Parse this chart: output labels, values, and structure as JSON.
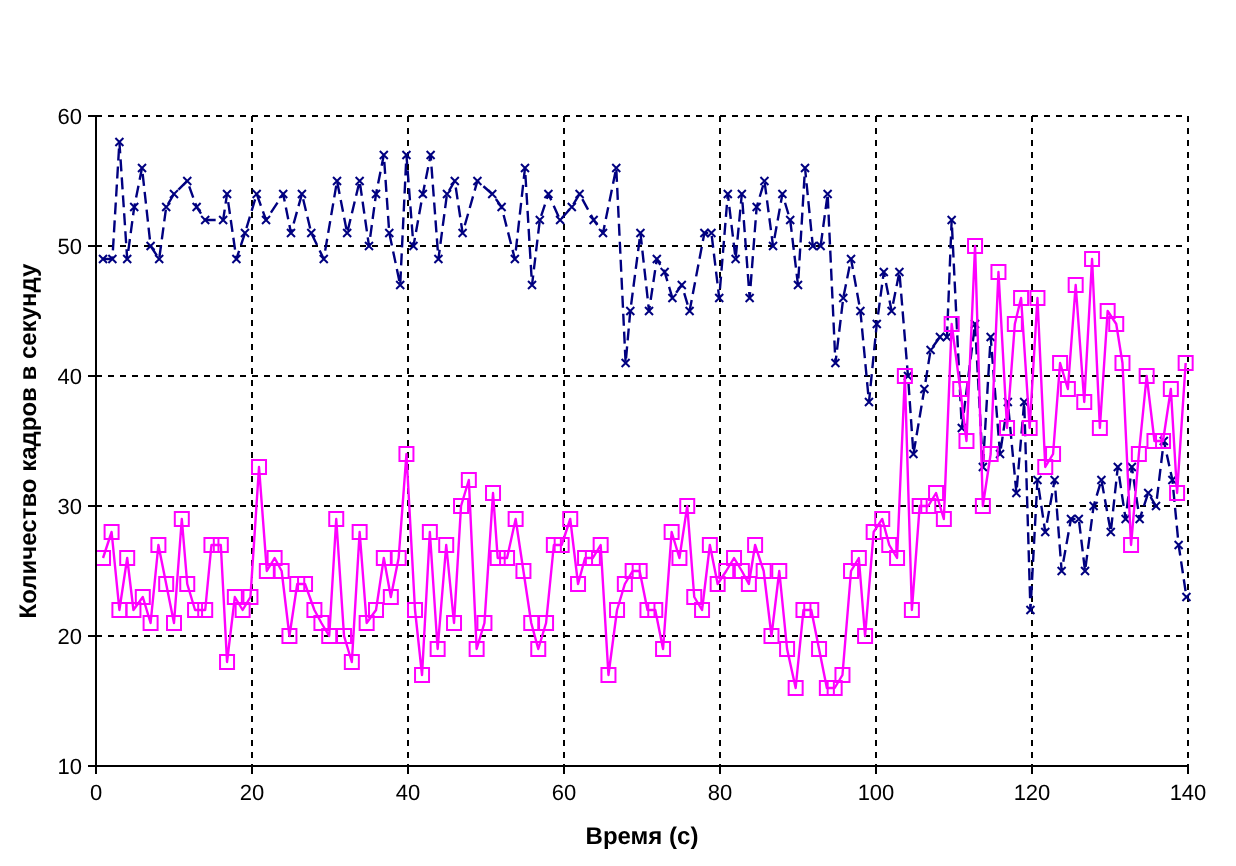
{
  "chart_data": {
    "type": "line",
    "xlabel": "Время (с)",
    "ylabel": "Количество кадров в секунду",
    "xlim": [
      0,
      140
    ],
    "xticks": [
      0,
      20,
      40,
      60,
      80,
      100,
      120,
      140
    ],
    "ylim": [
      10,
      60
    ],
    "yticks": [
      10,
      20,
      30,
      40,
      50,
      60
    ],
    "grid": true,
    "series": [
      {
        "color": "#000080",
        "marker": "cross",
        "line_style": "dashed",
        "x": [
          0.9,
          2.1,
          3,
          4,
          4.9,
          5.9,
          7,
          8.1,
          9,
          10,
          11.7,
          12.9,
          14,
          16.3,
          16.8,
          18,
          19.1,
          20.6,
          21.8,
          24,
          25,
          26.4,
          27.6,
          29.2,
          30.9,
          32.2,
          33.8,
          35,
          35.9,
          36.9,
          37.6,
          39,
          39.8,
          40.7,
          41.9,
          42.9,
          43.9,
          45,
          46,
          47,
          48.9,
          50.8,
          52,
          53.7,
          55,
          55.9,
          56.9,
          58,
          59.5,
          61,
          62,
          63.8,
          65,
          66.7,
          67.9,
          68.5,
          69.8,
          70.9,
          71.9,
          72.9,
          73.9,
          75.1,
          76.1,
          78,
          78.9,
          79.9,
          81,
          82,
          82.8,
          83.8,
          84.7,
          85.7,
          86.8,
          88,
          89,
          90,
          90.9,
          91.9,
          92.9,
          93.8,
          94.8,
          95.8,
          96.8,
          98,
          99.1,
          100.1,
          101,
          102,
          103,
          104.1,
          104.8,
          106.2,
          107,
          108.2,
          109.1,
          109.7,
          111,
          112.7,
          113.7,
          114.7,
          115.9,
          116.9,
          118,
          119,
          119.8,
          120.7,
          121.7,
          122.9,
          123.8,
          125,
          126,
          126.8,
          127.9,
          128.9,
          130.1,
          131,
          132,
          132.8,
          133.8,
          134.9,
          135.9,
          136.9,
          138,
          138.8,
          139.8
        ],
        "values": [
          49,
          49,
          58,
          49,
          53,
          56,
          50,
          49,
          53,
          54,
          55,
          53,
          52,
          52,
          54,
          49,
          51,
          54,
          52,
          54,
          51,
          54,
          51,
          49,
          55,
          51,
          55,
          50,
          54,
          57,
          51,
          47,
          57,
          50,
          54,
          57,
          49,
          54,
          55,
          51,
          55,
          54,
          53,
          49,
          56,
          47,
          52,
          54,
          52,
          53,
          54,
          52,
          51,
          56,
          41,
          45,
          51,
          45,
          49,
          48,
          46,
          47,
          45,
          51,
          51,
          46,
          54,
          49,
          54,
          46,
          53,
          55,
          50,
          54,
          52,
          47,
          56,
          50,
          50,
          54,
          41,
          46,
          49,
          45,
          38,
          44,
          48,
          45,
          48,
          40,
          34,
          39,
          42,
          43,
          43,
          52,
          36,
          44,
          33,
          43,
          34,
          38,
          31,
          38,
          22,
          32,
          28,
          32,
          25,
          29,
          29,
          25,
          30,
          32,
          28,
          33,
          29,
          33,
          29,
          31,
          30,
          35,
          32,
          27,
          23
        ]
      },
      {
        "color": "#ff00ff",
        "marker": "square",
        "line_style": "solid",
        "x": [
          0.9,
          2,
          3,
          4,
          4.8,
          6,
          7,
          8,
          9,
          10,
          11,
          11.7,
          12.7,
          14,
          14.8,
          16,
          16.8,
          17.8,
          18.8,
          19.8,
          20.9,
          21.9,
          22.9,
          23.8,
          24.8,
          25.8,
          26.8,
          28,
          28.9,
          29.9,
          30.8,
          31.8,
          32.8,
          33.8,
          34.7,
          35.9,
          36.9,
          37.8,
          38.8,
          39.8,
          40.9,
          41.8,
          42.8,
          43.8,
          44.9,
          45.9,
          46.8,
          47.8,
          48.8,
          49.8,
          50.9,
          51.5,
          52.7,
          53.8,
          54.8,
          55.8,
          56.7,
          57.7,
          58.7,
          59.7,
          60.8,
          61.8,
          62.7,
          63.7,
          64.7,
          65.7,
          66.8,
          67.8,
          68.8,
          69.7,
          70.7,
          71.7,
          72.7,
          73.8,
          74.8,
          75.8,
          76.7,
          77.7,
          78.7,
          79.7,
          80.8,
          81.8,
          82.8,
          83.7,
          84.5,
          85.6,
          86.6,
          87.6,
          88.6,
          89.7,
          90.7,
          91.7,
          92.7,
          93.7,
          94.7,
          95.7,
          96.8,
          97.8,
          98.6,
          99.7,
          100.8,
          101.7,
          102.7,
          103.7,
          104.6,
          105.6,
          106.7,
          107.7,
          108.7,
          109.7,
          110.8,
          111.6,
          112.7,
          113.7,
          114.7,
          115.7,
          116.8,
          117.8,
          118.6,
          119.7,
          120.7,
          121.7,
          122.7,
          123.6,
          124.6,
          125.6,
          126.7,
          127.7,
          128.7,
          129.7,
          130.8,
          131.6,
          132.7,
          133.7,
          134.7,
          135.7,
          136.8,
          137.8,
          138.6,
          139.7
        ],
        "values": [
          26,
          28,
          22,
          26,
          22,
          23,
          21,
          27,
          24,
          21,
          29,
          24,
          22,
          22,
          27,
          27,
          18,
          23,
          22,
          23,
          33,
          25,
          26,
          25,
          20,
          24,
          24,
          22,
          21,
          20,
          29,
          20,
          18,
          28,
          21,
          22,
          26,
          23,
          26,
          34,
          22,
          17,
          28,
          19,
          27,
          21,
          30,
          32,
          19,
          21,
          31,
          26,
          26,
          29,
          25,
          21,
          19,
          21,
          27,
          27,
          29,
          24,
          26,
          26,
          27,
          17,
          22,
          24,
          25,
          25,
          22,
          22,
          19,
          28,
          26,
          30,
          23,
          22,
          27,
          24,
          25,
          26,
          25,
          24,
          27,
          25,
          20,
          25,
          19,
          16,
          22,
          22,
          19,
          16,
          16,
          17,
          25,
          26,
          20,
          28,
          29,
          27,
          26,
          40,
          22,
          30,
          30,
          31,
          29,
          44,
          39,
          35,
          50,
          30,
          34,
          48,
          36,
          44,
          46,
          36,
          46,
          33,
          34,
          41,
          39,
          47,
          38,
          49,
          36,
          45,
          44,
          41,
          27,
          34,
          40,
          35,
          35,
          39,
          31,
          41
        ]
      }
    ]
  }
}
